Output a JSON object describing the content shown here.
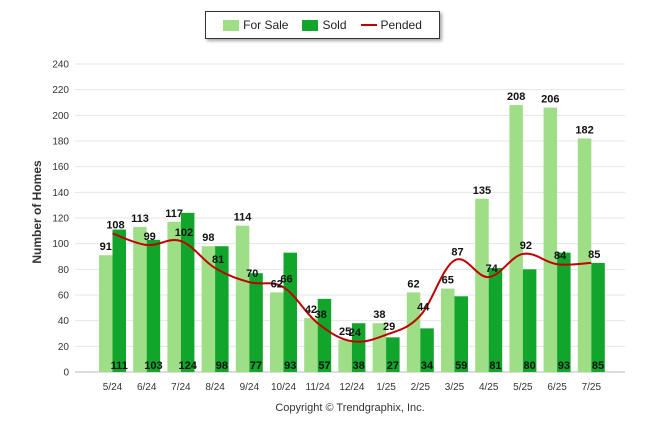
{
  "legend": {
    "for_sale": "For Sale",
    "sold": "Sold",
    "pended": "Pended"
  },
  "copyright": "Copyright © Trendgraphix, Inc.",
  "chart_data": {
    "type": "bar",
    "ylabel": "Number of Homes",
    "xlabel": "",
    "ylim": [
      0,
      240
    ],
    "yticks": [
      0,
      20,
      40,
      60,
      80,
      100,
      120,
      140,
      160,
      180,
      200,
      220,
      240
    ],
    "grid": true,
    "legend_position": "top-center",
    "categories": [
      "5/24",
      "6/24",
      "7/24",
      "8/24",
      "9/24",
      "10/24",
      "11/24",
      "12/24",
      "1/25",
      "2/25",
      "3/25",
      "4/25",
      "5/25",
      "6/25",
      "7/25"
    ],
    "series": [
      {
        "name": "For Sale",
        "type": "bar",
        "color": "#9ede87",
        "values": [
          91,
          113,
          117,
          98,
          114,
          62,
          42,
          25,
          38,
          62,
          65,
          135,
          208,
          206,
          182
        ]
      },
      {
        "name": "Sold",
        "type": "bar",
        "color": "#11a52c",
        "values": [
          111,
          103,
          124,
          98,
          77,
          93,
          57,
          38,
          27,
          34,
          59,
          81,
          80,
          93,
          85
        ]
      },
      {
        "name": "Pended",
        "type": "line",
        "color": "#c00000",
        "values": [
          108,
          99,
          102,
          81,
          70,
          66,
          38,
          24,
          29,
          44,
          87,
          74,
          92,
          84,
          85
        ]
      }
    ]
  }
}
